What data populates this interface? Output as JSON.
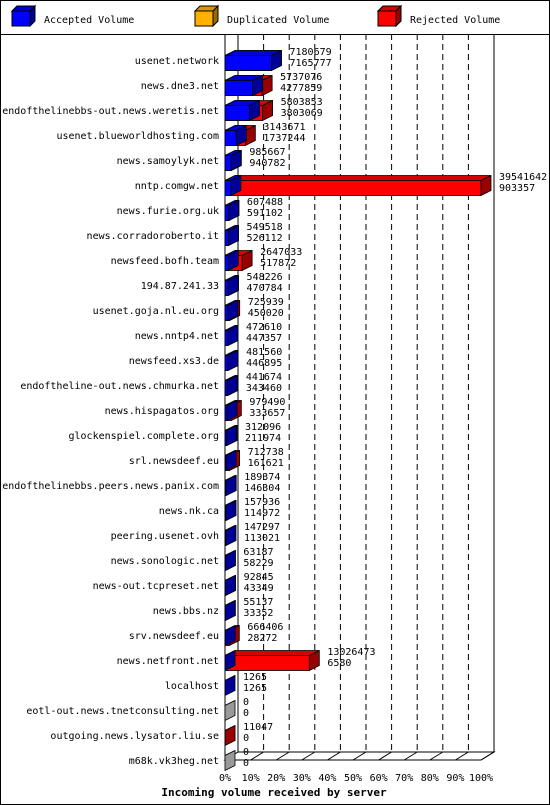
{
  "chart_data": {
    "type": "bar",
    "orientation": "horizontal",
    "title": "Incoming volume received by server",
    "legend": [
      {
        "name": "Accepted Volume",
        "color": "#0000ff"
      },
      {
        "name": "Duplicated Volume",
        "color": "#ffb000"
      },
      {
        "name": "Rejected Volume",
        "color": "#ff0000"
      }
    ],
    "legend_position": "top",
    "x_ticks": [
      "0%",
      "10%",
      "20%",
      "30%",
      "40%",
      "50%",
      "60%",
      "70%",
      "80%",
      "90%",
      "100%"
    ],
    "x_range_percent": [
      0,
      100
    ],
    "max_value": 39541642,
    "grid": true,
    "rows": [
      {
        "server": "usenet.network",
        "total": 7180679,
        "accepted": 7165777
      },
      {
        "server": "news.dne3.net",
        "total": 5737076,
        "accepted": 4277859
      },
      {
        "server": "endofthelinebbs-out.news.weretis.net",
        "total": 5803853,
        "accepted": 3803069
      },
      {
        "server": "usenet.blueworldhosting.com",
        "total": 3143671,
        "accepted": 1737244
      },
      {
        "server": "news.samoylyk.net",
        "total": 985667,
        "accepted": 940782
      },
      {
        "server": "nntp.comgw.net",
        "total": 39541642,
        "accepted": 903357
      },
      {
        "server": "news.furie.org.uk",
        "total": 607488,
        "accepted": 591102
      },
      {
        "server": "news.corradoroberto.it",
        "total": 549518,
        "accepted": 526112
      },
      {
        "server": "newsfeed.bofh.team",
        "total": 2647033,
        "accepted": 517872
      },
      {
        "server": "194.87.241.33",
        "total": 548226,
        "accepted": 470784
      },
      {
        "server": "usenet.goja.nl.eu.org",
        "total": 725939,
        "accepted": 450020
      },
      {
        "server": "news.nntp4.net",
        "total": 472610,
        "accepted": 447357
      },
      {
        "server": "newsfeed.xs3.de",
        "total": 481560,
        "accepted": 446895
      },
      {
        "server": "endoftheline-out.news.chmurka.net",
        "total": 441674,
        "accepted": 343460
      },
      {
        "server": "news.hispagatos.org",
        "total": 979490,
        "accepted": 333657
      },
      {
        "server": "glockenspiel.complete.org",
        "total": 312096,
        "accepted": 211974
      },
      {
        "server": "srl.newsdeef.eu",
        "total": 712738,
        "accepted": 161621
      },
      {
        "server": "endofthelinebbs.peers.news.panix.com",
        "total": 189374,
        "accepted": 146304
      },
      {
        "server": "news.nk.ca",
        "total": 157936,
        "accepted": 114972
      },
      {
        "server": "peering.usenet.ovh",
        "total": 147297,
        "accepted": 113021
      },
      {
        "server": "news.sonologic.net",
        "total": 63187,
        "accepted": 58229
      },
      {
        "server": "news-out.tcpreset.net",
        "total": 92845,
        "accepted": 43349
      },
      {
        "server": "news.bbs.nz",
        "total": 55137,
        "accepted": 33352
      },
      {
        "server": "srv.newsdeef.eu",
        "total": 666406,
        "accepted": 28272
      },
      {
        "server": "news.netfront.net",
        "total": 13026473,
        "accepted": 6580
      },
      {
        "server": "localhost",
        "total": 1265,
        "accepted": 1265
      },
      {
        "server": "eotl-out.news.tnetconsulting.net",
        "total": 0,
        "accepted": 0
      },
      {
        "server": "outgoing.news.lysator.liu.se",
        "total": 11047,
        "accepted": 0
      },
      {
        "server": "m68k.vk3heg.net",
        "total": 0,
        "accepted": 0
      }
    ]
  }
}
